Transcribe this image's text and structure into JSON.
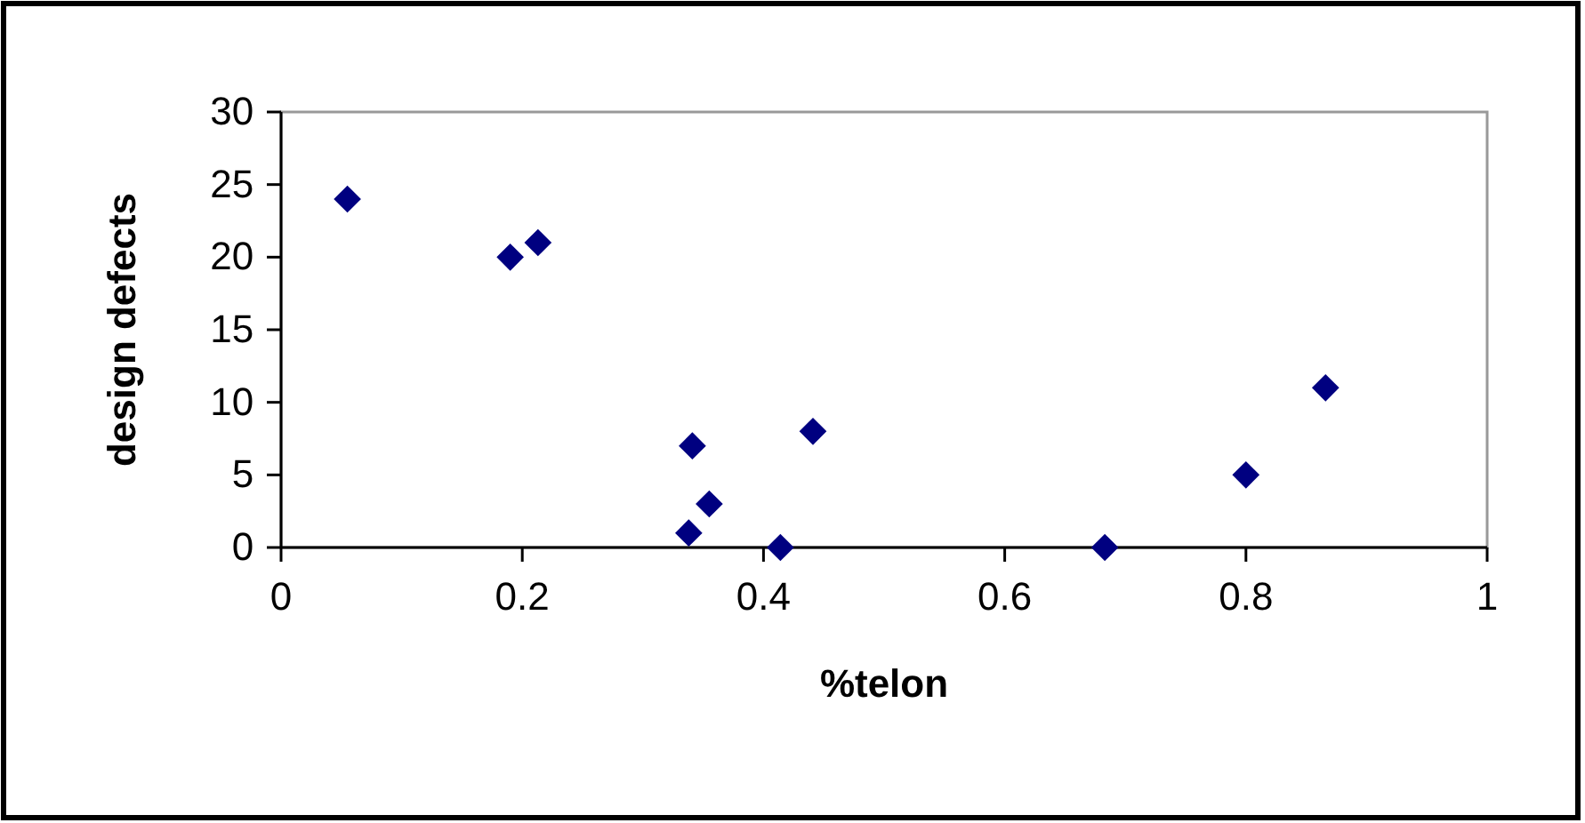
{
  "chart_data": {
    "type": "scatter",
    "xlabel": "%telon",
    "ylabel": "design defects",
    "marker": "diamond",
    "grid": false,
    "xlim": [
      0,
      1
    ],
    "xticks": [
      0,
      0.2,
      0.4,
      0.6,
      0.8,
      1
    ],
    "ylim": [
      0,
      30
    ],
    "yticks": [
      0,
      5,
      10,
      15,
      20,
      25,
      30
    ],
    "series": [
      {
        "color": "#000080",
        "x": [
          0.055,
          0.19,
          0.213,
          0.341,
          0.355,
          0.338,
          0.414,
          0.441,
          0.683,
          0.8,
          0.866
        ],
        "values": [
          24,
          20,
          21,
          7,
          3,
          1,
          0,
          8,
          0,
          5,
          11
        ]
      }
    ]
  }
}
